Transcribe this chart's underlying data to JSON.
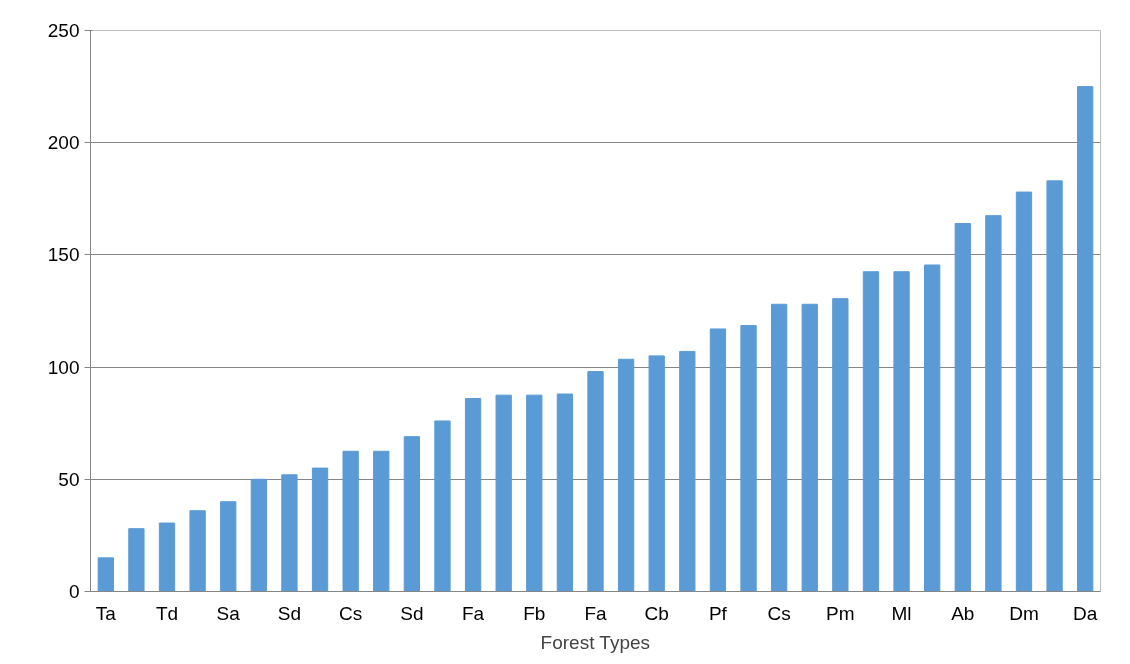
{
  "chart_data": {
    "type": "bar",
    "xlabel": "Forest Types",
    "categories": [
      "Ta",
      null,
      "Td",
      null,
      "Sa",
      null,
      "Sd",
      null,
      "Cs",
      null,
      "Sd",
      null,
      "Fa",
      null,
      "Fb",
      null,
      "Fa",
      null,
      "Cb",
      null,
      "Pf",
      null,
      "Cs",
      null,
      "Pm",
      null,
      "Ml",
      null,
      "Ab",
      null,
      "Dm",
      null,
      "Da"
    ],
    "values": [
      15,
      28,
      30.5,
      36,
      40,
      50,
      52,
      55,
      62.5,
      62.5,
      69,
      76,
      86,
      87.5,
      87.5,
      88,
      98,
      103.5,
      105,
      107,
      117,
      118.5,
      128,
      128,
      130.5,
      142.5,
      142.5,
      145.5,
      164,
      167.5,
      178,
      183,
      225
    ],
    "color": "#5b9bd5",
    "ylim": [
      0,
      250
    ],
    "yticks": [
      0,
      50,
      100,
      150,
      200,
      250
    ],
    "grid": "y"
  }
}
